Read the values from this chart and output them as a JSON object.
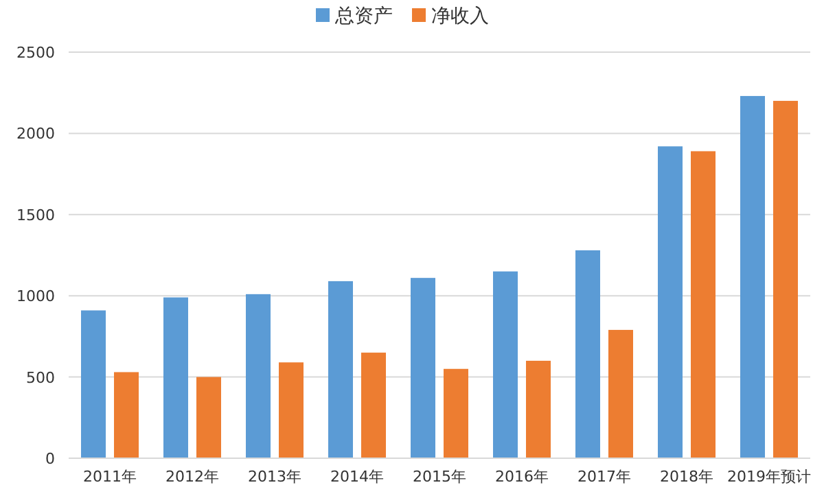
{
  "chart_data": {
    "type": "bar",
    "categories": [
      "2011年",
      "2012年",
      "2013年",
      "2014年",
      "2015年",
      "2016年",
      "2017年",
      "2018年",
      "2019年预计"
    ],
    "series": [
      {
        "name": "总资产",
        "color": "#5b9bd5",
        "values": [
          910,
          990,
          1010,
          1090,
          1110,
          1150,
          1280,
          1920,
          2230
        ]
      },
      {
        "name": "净收入",
        "color": "#ed7d31",
        "values": [
          530,
          500,
          590,
          650,
          550,
          600,
          790,
          1890,
          2200
        ]
      }
    ],
    "ylim": [
      0,
      2500
    ],
    "yticks": [
      0,
      500,
      1000,
      1500,
      2000,
      2500
    ],
    "grid": "y",
    "legend": "top"
  }
}
